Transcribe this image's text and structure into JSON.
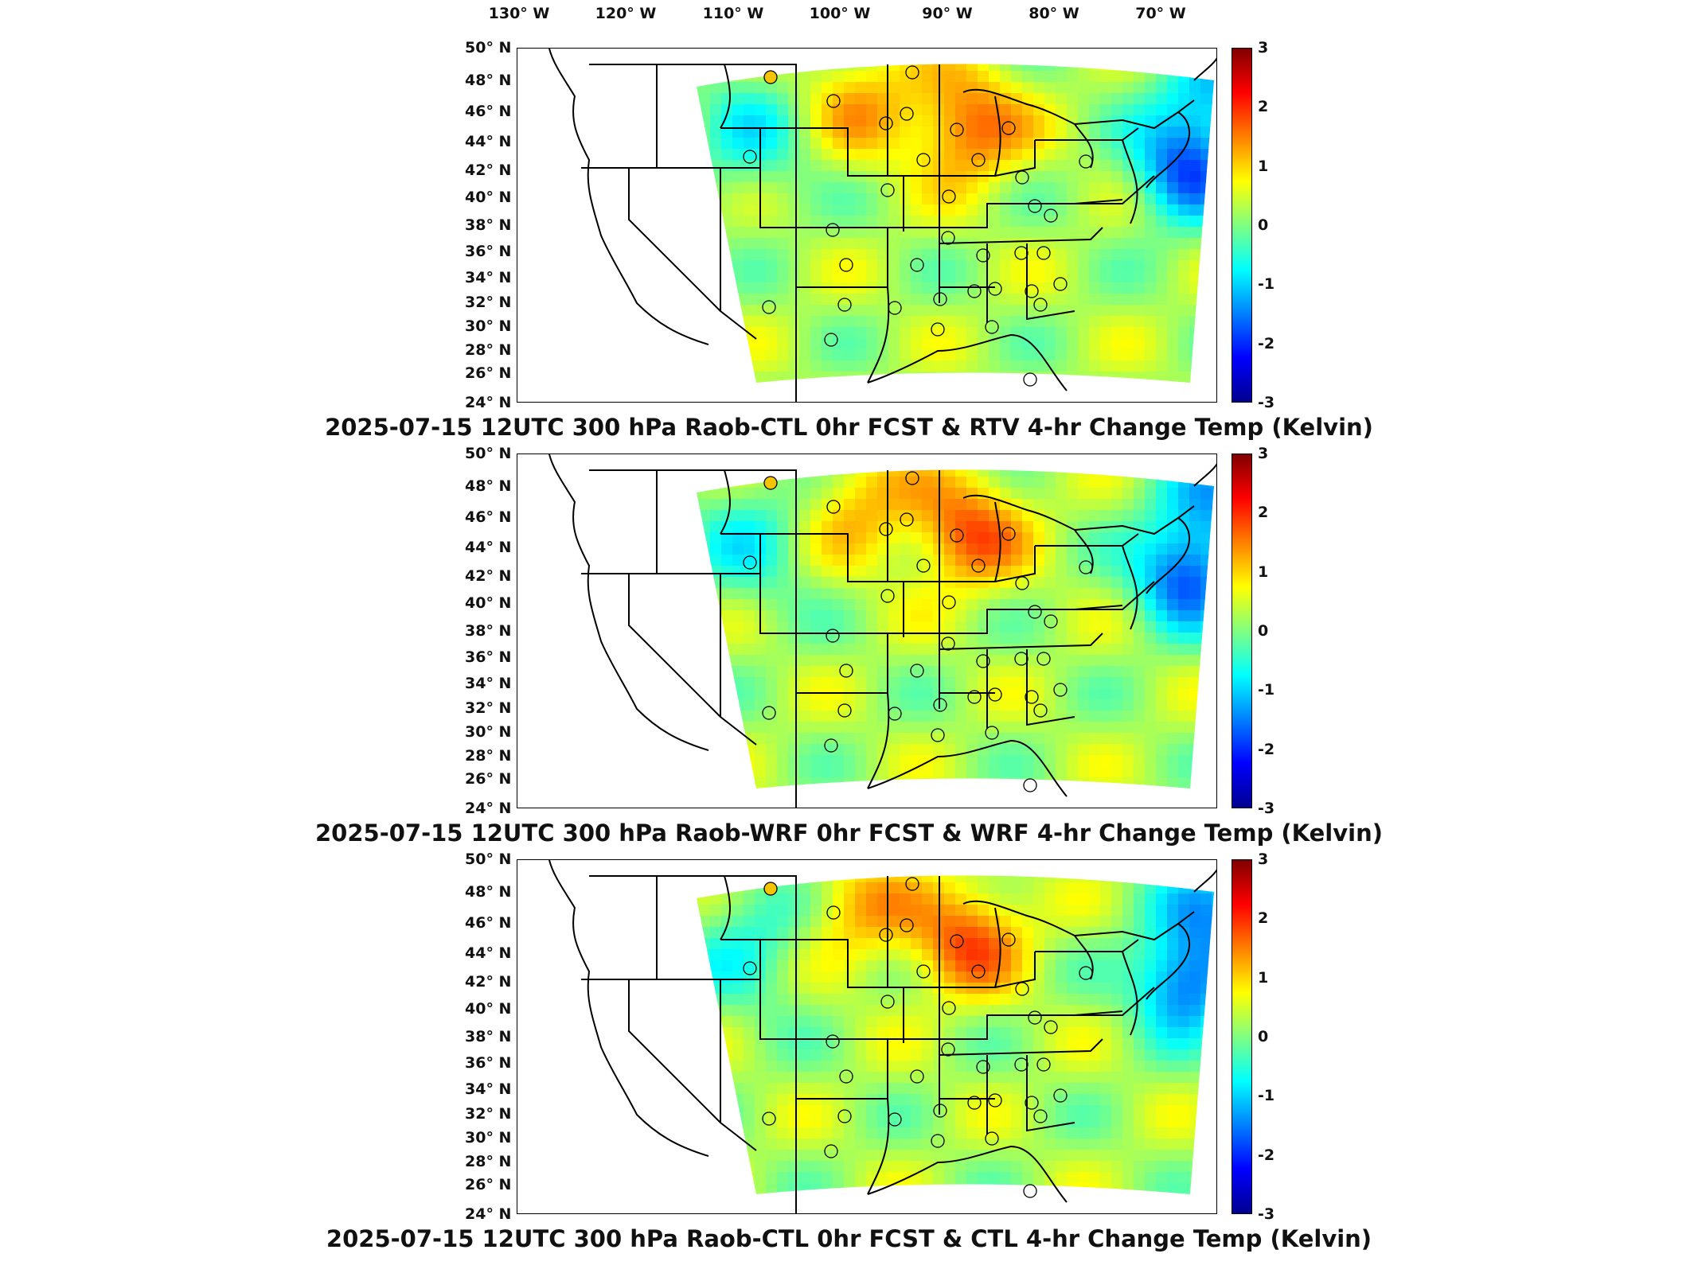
{
  "lon_labels": [
    "130° W",
    "120° W",
    "110° W",
    "100° W",
    "90° W",
    "80° W",
    "70° W"
  ],
  "lat_labels": [
    "50° N",
    "48° N",
    "46° N",
    "44° N",
    "42° N",
    "40° N",
    "38° N",
    "36° N",
    "34° N",
    "32° N",
    "30° N",
    "28° N",
    "26° N",
    "24° N"
  ],
  "colorbar": {
    "ticks": [
      "3",
      "2",
      "1",
      "0",
      "-1",
      "-2",
      "-3"
    ],
    "range": [
      -3,
      3
    ],
    "colors": [
      "#00008f",
      "#0000ff",
      "#0080ff",
      "#00ffff",
      "#80ff80",
      "#ffff00",
      "#ff8000",
      "#ff0000",
      "#800000"
    ]
  },
  "panels": [
    {
      "title": "2025-07-15 12UTC 300 hPa Raob-CTL 0hr FCST & RTV 4-hr Change Temp (Kelvin)"
    },
    {
      "title": "2025-07-15 12UTC 300 hPa Raob-WRF 0hr FCST & WRF 4-hr Change Temp (Kelvin)"
    },
    {
      "title": "2025-07-15 12UTC 300 hPa Raob-CTL 0hr FCST & CTL 4-hr Change Temp (Kelvin)"
    }
  ],
  "station_markers": {
    "highlighted_color": "#f5c400",
    "default_color": "none"
  }
}
